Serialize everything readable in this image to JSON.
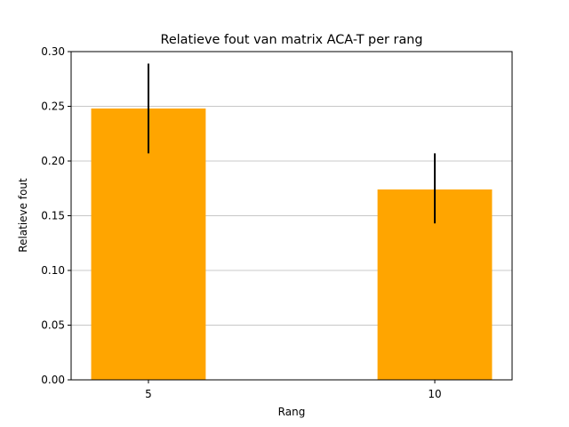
{
  "chart_data": {
    "type": "bar",
    "title": "Relatieve fout van matrix ACA-T per rang",
    "xlabel": "Rang",
    "ylabel": "Relatieve fout",
    "categories": [
      "5",
      "10"
    ],
    "values": [
      0.248,
      0.174
    ],
    "error_low": [
      0.207,
      0.143
    ],
    "error_high": [
      0.289,
      0.207
    ],
    "ylim": [
      0,
      0.3
    ],
    "yticks": [
      "0.00",
      "0.05",
      "0.10",
      "0.15",
      "0.20",
      "0.25",
      "0.30"
    ],
    "grid": "horizontal",
    "bar_color": "#ffa500",
    "error_color": "#000000",
    "grid_color": "#c8c8c8"
  }
}
